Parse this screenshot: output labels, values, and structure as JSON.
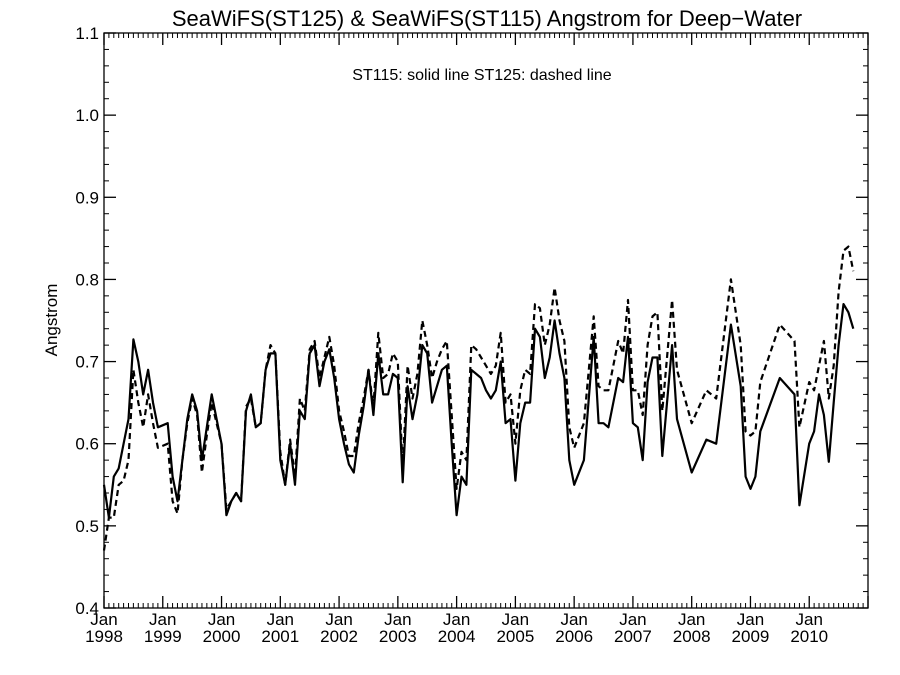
{
  "chart_data": {
    "type": "line",
    "title": "SeaWiFS(ST125) & SeaWiFS(ST115)  Angstrom for Deep−Water",
    "annotation": "ST115: solid line   ST125: dashed line",
    "xlabel": "",
    "ylabel": "Angstrom",
    "xlim": [
      "1998-01",
      "2011-01"
    ],
    "ylim": [
      0.4,
      1.1
    ],
    "y_ticks": [
      "0.4",
      "0.5",
      "0.6",
      "0.7",
      "0.8",
      "0.9",
      "1.0",
      "1.1"
    ],
    "x_ticks": [
      {
        "month": "Jan",
        "year": "1998"
      },
      {
        "month": "Jan",
        "year": "1999"
      },
      {
        "month": "Jan",
        "year": "2000"
      },
      {
        "month": "Jan",
        "year": "2001"
      },
      {
        "month": "Jan",
        "year": "2002"
      },
      {
        "month": "Jan",
        "year": "2003"
      },
      {
        "month": "Jan",
        "year": "2004"
      },
      {
        "month": "Jan",
        "year": "2005"
      },
      {
        "month": "Jan",
        "year": "2006"
      },
      {
        "month": "Jan",
        "year": "2007"
      },
      {
        "month": "Jan",
        "year": "2008"
      },
      {
        "month": "Jan",
        "year": "2009"
      },
      {
        "month": "Jan",
        "year": "2010"
      }
    ],
    "grid": false,
    "series": [
      {
        "style": "solid",
        "points": [
          [
            "1998-01",
            0.55
          ],
          [
            "1998-02",
            0.51
          ],
          [
            "1998-03",
            0.56
          ],
          [
            "1998-04",
            0.57
          ],
          [
            "1998-05",
            0.6
          ],
          [
            "1998-06",
            0.63
          ],
          [
            "1998-07",
            0.727
          ],
          [
            "1998-08",
            0.7
          ],
          [
            "1998-09",
            0.66
          ],
          [
            "1998-10",
            0.69
          ],
          [
            "1998-11",
            0.65
          ],
          [
            "1998-12",
            0.62
          ],
          [
            "1999-02",
            0.625
          ],
          [
            "1999-03",
            0.56
          ],
          [
            "1999-04",
            0.53
          ],
          [
            "1999-05",
            0.58
          ],
          [
            "1999-06",
            0.63
          ],
          [
            "1999-07",
            0.66
          ],
          [
            "1999-08",
            0.64
          ],
          [
            "1999-09",
            0.58
          ],
          [
            "1999-10",
            0.62
          ],
          [
            "1999-11",
            0.66
          ],
          [
            "1999-12",
            0.63
          ],
          [
            "2000-01",
            0.6
          ],
          [
            "2000-02",
            0.513
          ],
          [
            "2000-03",
            0.53
          ],
          [
            "2000-04",
            0.54
          ],
          [
            "2000-05",
            0.53
          ],
          [
            "2000-06",
            0.64
          ],
          [
            "2000-07",
            0.66
          ],
          [
            "2000-08",
            0.62
          ],
          [
            "2000-09",
            0.625
          ],
          [
            "2000-10",
            0.69
          ],
          [
            "2000-11",
            0.71
          ],
          [
            "2000-12",
            0.71
          ],
          [
            "2001-01",
            0.58
          ],
          [
            "2001-02",
            0.55
          ],
          [
            "2001-03",
            0.6
          ],
          [
            "2001-04",
            0.55
          ],
          [
            "2001-05",
            0.64
          ],
          [
            "2001-06",
            0.63
          ],
          [
            "2001-07",
            0.71
          ],
          [
            "2001-08",
            0.72
          ],
          [
            "2001-09",
            0.67
          ],
          [
            "2001-10",
            0.7
          ],
          [
            "2001-11",
            0.715
          ],
          [
            "2001-12",
            0.68
          ],
          [
            "2002-01",
            0.63
          ],
          [
            "2002-02",
            0.6
          ],
          [
            "2002-03",
            0.575
          ],
          [
            "2002-04",
            0.565
          ],
          [
            "2002-05",
            0.61
          ],
          [
            "2002-06",
            0.645
          ],
          [
            "2002-07",
            0.69
          ],
          [
            "2002-08",
            0.635
          ],
          [
            "2002-09",
            0.71
          ],
          [
            "2002-10",
            0.66
          ],
          [
            "2002-11",
            0.66
          ],
          [
            "2002-12",
            0.685
          ],
          [
            "2003-01",
            0.68
          ],
          [
            "2003-02",
            0.553
          ],
          [
            "2003-03",
            0.67
          ],
          [
            "2003-04",
            0.63
          ],
          [
            "2003-05",
            0.66
          ],
          [
            "2003-06",
            0.72
          ],
          [
            "2003-07",
            0.71
          ],
          [
            "2003-08",
            0.65
          ],
          [
            "2003-09",
            0.67
          ],
          [
            "2003-10",
            0.69
          ],
          [
            "2003-11",
            0.695
          ],
          [
            "2003-12",
            0.6
          ],
          [
            "2004-01",
            0.513
          ],
          [
            "2004-02",
            0.56
          ],
          [
            "2004-03",
            0.55
          ],
          [
            "2004-04",
            0.69
          ],
          [
            "2004-05",
            0.685
          ],
          [
            "2004-06",
            0.68
          ],
          [
            "2004-07",
            0.665
          ],
          [
            "2004-08",
            0.655
          ],
          [
            "2004-09",
            0.665
          ],
          [
            "2004-10",
            0.7
          ],
          [
            "2004-11",
            0.625
          ],
          [
            "2004-12",
            0.63
          ],
          [
            "2005-01",
            0.555
          ],
          [
            "2005-02",
            0.625
          ],
          [
            "2005-03",
            0.65
          ],
          [
            "2005-04",
            0.65
          ],
          [
            "2005-05",
            0.74
          ],
          [
            "2005-06",
            0.73
          ],
          [
            "2005-07",
            0.68
          ],
          [
            "2005-08",
            0.705
          ],
          [
            "2005-09",
            0.75
          ],
          [
            "2005-10",
            0.71
          ],
          [
            "2005-11",
            0.68
          ],
          [
            "2005-12",
            0.58
          ],
          [
            "2006-01",
            0.55
          ],
          [
            "2006-03",
            0.58
          ],
          [
            "2006-05",
            0.73
          ],
          [
            "2006-06",
            0.625
          ],
          [
            "2006-07",
            0.625
          ],
          [
            "2006-08",
            0.62
          ],
          [
            "2006-10",
            0.68
          ],
          [
            "2006-11",
            0.675
          ],
          [
            "2006-12",
            0.73
          ],
          [
            "2007-01",
            0.625
          ],
          [
            "2007-02",
            0.62
          ],
          [
            "2007-03",
            0.58
          ],
          [
            "2007-04",
            0.675
          ],
          [
            "2007-05",
            0.705
          ],
          [
            "2007-06",
            0.705
          ],
          [
            "2007-07",
            0.585
          ],
          [
            "2007-09",
            0.72
          ],
          [
            "2007-10",
            0.63
          ],
          [
            "2008-01",
            0.565
          ],
          [
            "2008-04",
            0.605
          ],
          [
            "2008-06",
            0.6
          ],
          [
            "2008-09",
            0.745
          ],
          [
            "2008-11",
            0.67
          ],
          [
            "2008-12",
            0.56
          ],
          [
            "2009-01",
            0.545
          ],
          [
            "2009-02",
            0.56
          ],
          [
            "2009-03",
            0.615
          ],
          [
            "2009-07",
            0.68
          ],
          [
            "2009-10",
            0.66
          ],
          [
            "2009-11",
            0.525
          ],
          [
            "2010-01",
            0.6
          ],
          [
            "2010-02",
            0.615
          ],
          [
            "2010-03",
            0.66
          ],
          [
            "2010-04",
            0.635
          ],
          [
            "2010-05",
            0.578
          ],
          [
            "2010-06",
            0.65
          ],
          [
            "2010-07",
            0.72
          ],
          [
            "2010-08",
            0.77
          ],
          [
            "2010-09",
            0.76
          ],
          [
            "2010-10",
            0.74
          ]
        ]
      },
      {
        "style": "dashed",
        "points": [
          [
            "1998-01",
            0.47
          ],
          [
            "1998-02",
            0.51
          ],
          [
            "1998-03",
            0.51
          ],
          [
            "1998-04",
            0.55
          ],
          [
            "1998-05",
            0.555
          ],
          [
            "1998-06",
            0.58
          ],
          [
            "1998-07",
            0.69
          ],
          [
            "1998-08",
            0.65
          ],
          [
            "1998-09",
            0.62
          ],
          [
            "1998-10",
            0.66
          ],
          [
            "1998-11",
            0.625
          ],
          [
            "1998-12",
            0.595
          ],
          [
            "1999-02",
            0.6
          ],
          [
            "1999-03",
            0.53
          ],
          [
            "1999-04",
            0.515
          ],
          [
            "1999-05",
            0.58
          ],
          [
            "1999-06",
            0.625
          ],
          [
            "1999-07",
            0.655
          ],
          [
            "1999-08",
            0.635
          ],
          [
            "1999-09",
            0.565
          ],
          [
            "1999-10",
            0.61
          ],
          [
            "1999-11",
            0.65
          ],
          [
            "1999-12",
            0.625
          ],
          [
            "2000-01",
            0.6
          ],
          [
            "2000-02",
            0.52
          ],
          [
            "2000-03",
            0.53
          ],
          [
            "2000-04",
            0.54
          ],
          [
            "2000-05",
            0.53
          ],
          [
            "2000-06",
            0.645
          ],
          [
            "2000-07",
            0.655
          ],
          [
            "2000-08",
            0.62
          ],
          [
            "2000-09",
            0.625
          ],
          [
            "2000-10",
            0.69
          ],
          [
            "2000-11",
            0.72
          ],
          [
            "2000-12",
            0.71
          ],
          [
            "2001-01",
            0.59
          ],
          [
            "2001-02",
            0.55
          ],
          [
            "2001-03",
            0.605
          ],
          [
            "2001-04",
            0.56
          ],
          [
            "2001-05",
            0.655
          ],
          [
            "2001-06",
            0.64
          ],
          [
            "2001-07",
            0.715
          ],
          [
            "2001-08",
            0.725
          ],
          [
            "2001-09",
            0.68
          ],
          [
            "2001-10",
            0.705
          ],
          [
            "2001-11",
            0.73
          ],
          [
            "2001-12",
            0.695
          ],
          [
            "2002-01",
            0.64
          ],
          [
            "2002-02",
            0.615
          ],
          [
            "2002-03",
            0.585
          ],
          [
            "2002-04",
            0.585
          ],
          [
            "2002-05",
            0.625
          ],
          [
            "2002-06",
            0.655
          ],
          [
            "2002-07",
            0.69
          ],
          [
            "2002-08",
            0.645
          ],
          [
            "2002-09",
            0.735
          ],
          [
            "2002-10",
            0.68
          ],
          [
            "2002-11",
            0.685
          ],
          [
            "2002-12",
            0.71
          ],
          [
            "2003-01",
            0.7
          ],
          [
            "2003-02",
            0.57
          ],
          [
            "2003-03",
            0.695
          ],
          [
            "2003-04",
            0.655
          ],
          [
            "2003-05",
            0.685
          ],
          [
            "2003-06",
            0.75
          ],
          [
            "2003-07",
            0.72
          ],
          [
            "2003-08",
            0.68
          ],
          [
            "2003-09",
            0.7
          ],
          [
            "2003-10",
            0.715
          ],
          [
            "2003-11",
            0.725
          ],
          [
            "2003-12",
            0.635
          ],
          [
            "2004-01",
            0.545
          ],
          [
            "2004-02",
            0.59
          ],
          [
            "2004-03",
            0.58
          ],
          [
            "2004-04",
            0.72
          ],
          [
            "2004-05",
            0.715
          ],
          [
            "2004-06",
            0.705
          ],
          [
            "2004-07",
            0.695
          ],
          [
            "2004-08",
            0.685
          ],
          [
            "2004-09",
            0.695
          ],
          [
            "2004-10",
            0.735
          ],
          [
            "2004-11",
            0.65
          ],
          [
            "2004-12",
            0.66
          ],
          [
            "2005-01",
            0.6
          ],
          [
            "2005-02",
            0.665
          ],
          [
            "2005-03",
            0.69
          ],
          [
            "2005-04",
            0.685
          ],
          [
            "2005-05",
            0.77
          ],
          [
            "2005-06",
            0.765
          ],
          [
            "2005-07",
            0.72
          ],
          [
            "2005-08",
            0.745
          ],
          [
            "2005-09",
            0.79
          ],
          [
            "2005-10",
            0.75
          ],
          [
            "2005-11",
            0.725
          ],
          [
            "2005-12",
            0.62
          ],
          [
            "2006-01",
            0.595
          ],
          [
            "2006-03",
            0.625
          ],
          [
            "2006-05",
            0.755
          ],
          [
            "2006-06",
            0.67
          ],
          [
            "2006-07",
            0.665
          ],
          [
            "2006-08",
            0.665
          ],
          [
            "2006-10",
            0.725
          ],
          [
            "2006-11",
            0.71
          ],
          [
            "2006-12",
            0.775
          ],
          [
            "2007-01",
            0.665
          ],
          [
            "2007-02",
            0.665
          ],
          [
            "2007-03",
            0.635
          ],
          [
            "2007-04",
            0.72
          ],
          [
            "2007-05",
            0.755
          ],
          [
            "2007-06",
            0.76
          ],
          [
            "2007-07",
            0.64
          ],
          [
            "2007-09",
            0.775
          ],
          [
            "2007-10",
            0.69
          ],
          [
            "2008-01",
            0.625
          ],
          [
            "2008-04",
            0.665
          ],
          [
            "2008-06",
            0.655
          ],
          [
            "2008-09",
            0.8
          ],
          [
            "2008-11",
            0.72
          ],
          [
            "2008-12",
            0.615
          ],
          [
            "2009-01",
            0.61
          ],
          [
            "2009-02",
            0.615
          ],
          [
            "2009-03",
            0.675
          ],
          [
            "2009-07",
            0.745
          ],
          [
            "2009-10",
            0.725
          ],
          [
            "2009-11",
            0.62
          ],
          [
            "2010-01",
            0.675
          ],
          [
            "2010-02",
            0.665
          ],
          [
            "2010-03",
            0.695
          ],
          [
            "2010-04",
            0.725
          ],
          [
            "2010-05",
            0.655
          ],
          [
            "2010-06",
            0.695
          ],
          [
            "2010-07",
            0.785
          ],
          [
            "2010-08",
            0.835
          ],
          [
            "2010-09",
            0.84
          ],
          [
            "2010-10",
            0.81
          ]
        ]
      }
    ]
  }
}
